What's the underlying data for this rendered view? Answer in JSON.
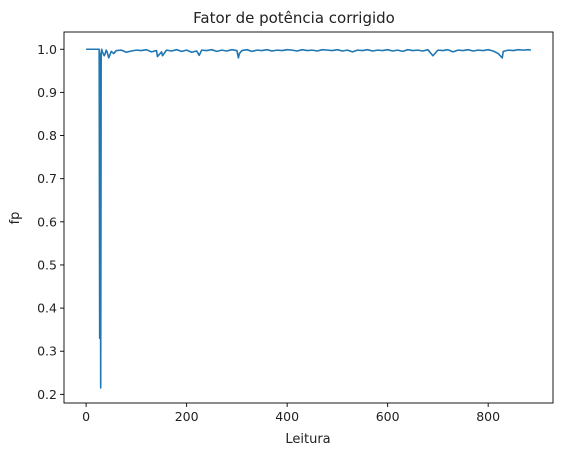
{
  "chart_data": {
    "type": "line",
    "title": "Fator de potência corrigido",
    "xlabel": "Leitura",
    "ylabel": "fp",
    "xlim": [
      -44,
      929
    ],
    "ylim": [
      0.18,
      1.04
    ],
    "xticks": [
      0,
      200,
      400,
      600,
      800
    ],
    "yticks": [
      0.2,
      0.3,
      0.4,
      0.5,
      0.6,
      0.7,
      0.8,
      0.9,
      1.0
    ],
    "xtick_labels": [
      "0",
      "200",
      "400",
      "600",
      "800"
    ],
    "ytick_labels": [
      "0.2",
      "0.3",
      "0.4",
      "0.5",
      "0.6",
      "0.7",
      "0.8",
      "0.9",
      "1.0"
    ],
    "grid": false,
    "line_color": "#1f77b4",
    "series": [
      {
        "x": [
          0,
          26,
          27,
          28,
          29,
          30,
          31,
          32,
          36,
          38,
          40,
          42,
          45,
          50,
          55,
          60,
          70,
          80,
          90,
          100,
          110,
          120,
          130,
          140,
          142,
          150,
          152,
          160,
          170,
          180,
          190,
          200,
          210,
          220,
          225,
          230,
          240,
          250,
          260,
          270,
          280,
          290,
          300,
          303,
          305,
          310,
          320,
          330,
          340,
          350,
          360,
          370,
          380,
          390,
          400,
          410,
          420,
          430,
          440,
          450,
          460,
          470,
          480,
          490,
          500,
          510,
          520,
          530,
          540,
          550,
          560,
          570,
          580,
          590,
          600,
          610,
          620,
          630,
          640,
          650,
          660,
          670,
          680,
          690,
          700,
          710,
          720,
          730,
          740,
          750,
          760,
          770,
          780,
          790,
          800,
          810,
          820,
          828,
          830,
          840,
          850,
          860,
          870,
          880,
          885
        ],
        "y": [
          1.0,
          1.0,
          0.33,
          0.99,
          0.215,
          0.99,
          1.0,
          0.995,
          0.985,
          0.99,
          0.998,
          0.993,
          0.98,
          0.995,
          0.99,
          0.997,
          0.998,
          0.993,
          0.996,
          0.998,
          0.997,
          0.999,
          0.994,
          0.997,
          0.983,
          0.994,
          0.985,
          0.998,
          0.996,
          0.999,
          0.995,
          0.998,
          0.993,
          0.996,
          0.986,
          0.998,
          0.997,
          0.999,
          0.995,
          0.998,
          0.996,
          0.999,
          0.997,
          0.98,
          0.99,
          0.997,
          0.999,
          0.995,
          0.998,
          0.997,
          0.999,
          0.996,
          0.998,
          0.997,
          0.999,
          0.998,
          0.996,
          0.999,
          0.997,
          0.998,
          0.996,
          0.999,
          0.998,
          0.997,
          0.999,
          0.996,
          0.998,
          0.994,
          0.998,
          0.997,
          0.999,
          0.996,
          0.998,
          0.997,
          0.999,
          0.996,
          0.998,
          0.995,
          0.999,
          0.997,
          0.998,
          0.996,
          0.999,
          0.985,
          0.998,
          0.997,
          0.999,
          0.994,
          0.998,
          0.997,
          0.999,
          0.996,
          0.998,
          0.997,
          0.999,
          0.996,
          0.99,
          0.98,
          0.995,
          0.998,
          0.997,
          0.999,
          0.998,
          0.999,
          0.998
        ]
      }
    ]
  }
}
